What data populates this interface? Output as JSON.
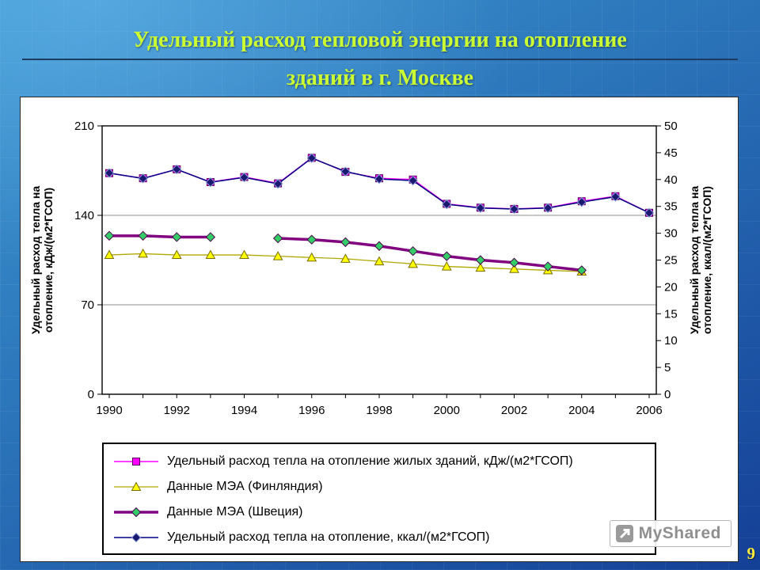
{
  "slide": {
    "title_line1": "Удельный расход тепловой энергии на отопление",
    "title_line2": "зданий в г. Москве",
    "page_number": "9",
    "watermark_text": "MyShared"
  },
  "chart_data": {
    "type": "line",
    "title": "",
    "grid": true,
    "legend_position": "bottom",
    "x": [
      1990,
      1991,
      1992,
      1993,
      1994,
      1995,
      1996,
      1997,
      1998,
      1999,
      2000,
      2001,
      2002,
      2003,
      2004,
      2005,
      2006
    ],
    "x_tick_labels": [
      1990,
      1992,
      1994,
      1996,
      1998,
      2000,
      2002,
      2004,
      2006
    ],
    "axes": {
      "left": {
        "title": "Удельный расход тепла на отопление, кДж/(м2*ГСОП)",
        "title_lines": [
          "Удельный расход тепла на",
          "отопление, кДж/(м2*ГСОП)"
        ],
        "range": [
          0,
          210
        ],
        "ticks": [
          0,
          70,
          140,
          210
        ]
      },
      "right": {
        "title": "Удельный расход тепла на отопление, ккал/(м2*ГСОП)",
        "title_lines": [
          "Удельный расход тепла на",
          "отопление, ккал/(м2*ГСОП)"
        ],
        "range": [
          0,
          50
        ],
        "ticks": [
          0,
          5,
          10,
          15,
          20,
          25,
          30,
          35,
          40,
          45,
          50
        ]
      }
    },
    "series": [
      {
        "name": "Удельный расход тепла на отопление жилых зданий, кДж/(м2*ГСОП)",
        "axis": "left",
        "marker": "square",
        "color": "#ff00ff",
        "marker_fill": "#ff00ff",
        "marker_stroke": "#5a005a",
        "line_width": 1.5,
        "values": [
          173,
          169,
          176,
          166,
          170,
          165,
          185,
          174,
          169,
          168,
          149,
          146,
          145,
          146,
          151,
          155,
          142
        ]
      },
      {
        "name": "Данные МЭА (Финляндия)",
        "axis": "left",
        "marker": "triangle",
        "color": "#b0a800",
        "marker_fill": "#ffff00",
        "marker_stroke": "#7a6a00",
        "line_width": 1.3,
        "values": [
          109,
          110,
          109,
          109,
          109,
          108,
          107,
          106,
          104,
          102,
          100,
          99,
          98,
          97,
          96,
          null,
          null
        ]
      },
      {
        "name": "Данные МЭА (Швеция)",
        "axis": "left",
        "marker": "diamond",
        "color": "#800080",
        "marker_fill": "#33cc66",
        "marker_stroke": "#4a004a",
        "line_width": 3.5,
        "values": [
          124,
          124,
          123,
          123,
          null,
          122,
          121,
          119,
          116,
          112,
          108,
          105,
          103,
          100,
          97,
          null,
          null
        ]
      },
      {
        "name": "Удельный расход тепла на отопление, ккал/(м2*ГСОП)",
        "axis": "right",
        "marker": "diamond",
        "color": "#000080",
        "marker_fill": "#191970",
        "marker_stroke": "#8899dd",
        "line_width": 1.5,
        "values": [
          41.2,
          40.2,
          41.9,
          39.5,
          40.4,
          39.2,
          44.0,
          41.5,
          40.1,
          39.8,
          35.4,
          34.7,
          34.5,
          34.7,
          35.8,
          36.8,
          33.8
        ]
      }
    ]
  }
}
